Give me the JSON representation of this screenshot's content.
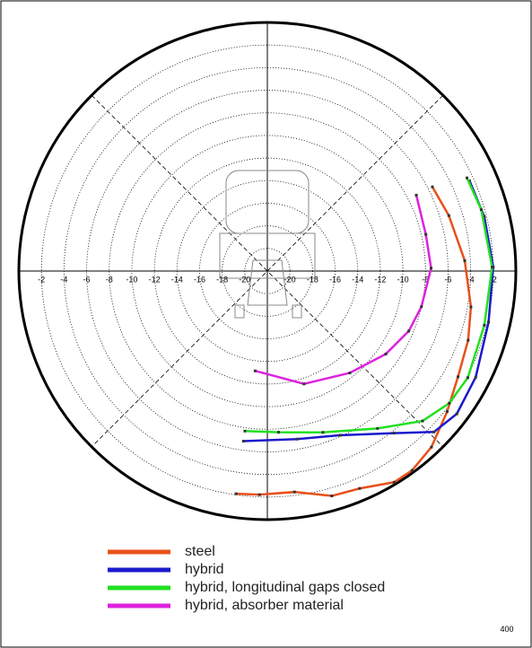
{
  "chart_data": {
    "type": "polar",
    "rlim": [
      -22,
      0
    ],
    "rticks": [
      -20,
      -18,
      -16,
      -14,
      -12,
      -10,
      -8,
      -6,
      -4,
      -2
    ],
    "grid": true,
    "series": [
      {
        "name": "steel",
        "color": "#e8501a",
        "x": [
          -27,
          -17,
          -3,
          10,
          19,
          29,
          38,
          47,
          54,
          59,
          67,
          74,
          83,
          92,
          98
        ],
        "values": [
          -5.6,
          -5.2,
          -4.5,
          -3.7,
          -3.2,
          -2.7,
          -1.8,
          -0.7,
          -0.2,
          -0.2,
          -1.1,
          -1.3,
          -2.3,
          -2.2,
          -2.1
        ]
      },
      {
        "name": "hybrid",
        "color": "#1a1acc",
        "x": [
          -24,
          -14,
          -1,
          13,
          27,
          37,
          44,
          52,
          66,
          80,
          98
        ],
        "values": [
          -2.4,
          -2.2,
          -2.0,
          -1.9,
          -1.3,
          -1.0,
          -1.5,
          -3.8,
          -6.1,
          -6.9,
          -6.8
        ]
      },
      {
        "name": "hybrid, longitudinal gaps closed",
        "color": "#22e022",
        "x": [
          -25,
          -16,
          -1,
          14,
          28,
          36,
          44,
          55,
          71,
          86,
          98
        ],
        "values": [
          -2.5,
          -2.3,
          -2.1,
          -2.2,
          -1.9,
          -2.1,
          -2.9,
          -5.0,
          -6.9,
          -7.7,
          -7.7
        ]
      },
      {
        "name": "hybrid, absorber material",
        "color": "#dd22dd",
        "x": [
          -27,
          -13,
          -1,
          13,
          23,
          35,
          51,
          72,
          97
        ],
        "values": [
          -7.2,
          -7.6,
          -7.5,
          -8.0,
          -8.4,
          -9.2,
          -10.4,
          -11.5,
          -13.1
        ]
      }
    ],
    "annotation": "400"
  }
}
